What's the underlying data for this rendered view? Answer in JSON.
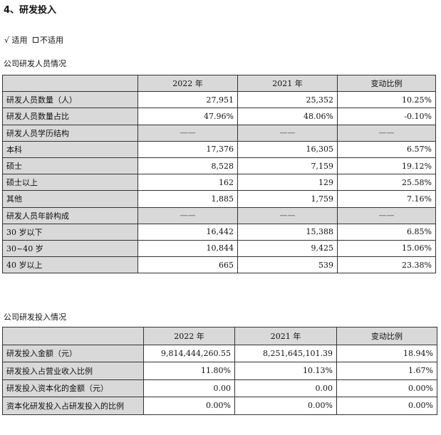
{
  "heading": "4、研发投入",
  "applicable": {
    "check": "√",
    "yes": "适用",
    "no": "不适用"
  },
  "personnel": {
    "title": "公司研发人员情况",
    "headers": [
      "",
      "2022 年",
      "2021 年",
      "变动比例"
    ],
    "rows": [
      {
        "label": "研发人员数量（人）",
        "v2022": "27,951",
        "v2021": "25,352",
        "change": "10.25%"
      },
      {
        "label": "研发人员数量占比",
        "v2022": "47.96%",
        "v2021": "48.06%",
        "change": "-0.10%"
      },
      {
        "label": "研发人员学历结构",
        "v2022": "——",
        "v2021": "——",
        "change": "——"
      },
      {
        "label": "本科",
        "v2022": "17,376",
        "v2021": "16,305",
        "change": "6.57%"
      },
      {
        "label": "硕士",
        "v2022": "8,528",
        "v2021": "7,159",
        "change": "19.12%"
      },
      {
        "label": "硕士以上",
        "v2022": "162",
        "v2021": "129",
        "change": "25.58%"
      },
      {
        "label": "其他",
        "v2022": "1,885",
        "v2021": "1,759",
        "change": "7.16%"
      },
      {
        "label": "研发人员年龄构成",
        "v2022": "——",
        "v2021": "——",
        "change": "——"
      },
      {
        "label": "30 岁以下",
        "v2022": "16,442",
        "v2021": "15,388",
        "change": "6.85%"
      },
      {
        "label": "30~40 岁",
        "v2022": "10,844",
        "v2021": "9,425",
        "change": "15.06%"
      },
      {
        "label": "40 岁以上",
        "v2022": "665",
        "v2021": "539",
        "change": "23.38%"
      }
    ]
  },
  "investment": {
    "title": "公司研发投入情况",
    "headers": [
      "",
      "2022 年",
      "2021 年",
      "变动比例"
    ],
    "rows": [
      {
        "label": "研发投入金额（元）",
        "v2022": "9,814,444,260.55",
        "v2021": "8,251,645,101.39",
        "change": "18.94%"
      },
      {
        "label": "研发投入占营业收入比例",
        "v2022": "11.80%",
        "v2021": "10.13%",
        "change": "1.67%"
      },
      {
        "label": "研发投入资本化的金额（元）",
        "v2022": "0.00",
        "v2021": "0.00",
        "change": "0.00%"
      },
      {
        "label": "资本化研发投入占研发投入的比例",
        "v2022": "0.00%",
        "v2021": "0.00%",
        "change": "0.00%"
      }
    ]
  }
}
